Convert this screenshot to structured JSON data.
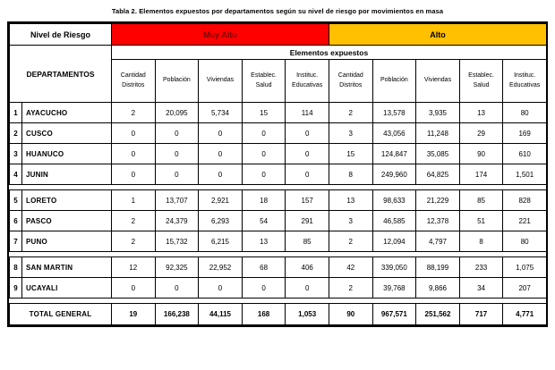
{
  "title": "Tabla 2. Elementos expuestos por departamentos según su nivel de riesgo por movimientos en masa",
  "colors": {
    "muy_alto_bg": "#ff0000",
    "muy_alto_text": "#7a0000",
    "alto_bg": "#ffc000",
    "alto_text": "#000000",
    "border": "#000000"
  },
  "table": {
    "risk_header": "Nivel de Riesgo",
    "risk_levels": [
      {
        "label": "Muy Alto"
      },
      {
        "label": "Alto"
      }
    ],
    "departamentos_header": "DEPARTAMENTOS",
    "elementos_header": "Elementos expuestos",
    "subheaders": [
      "Cantidad\nDistritos",
      "Población",
      "Viviendas",
      "Establec.\nSalud",
      "Instituc.\nEducativas"
    ],
    "rows": [
      {
        "num": "1",
        "name": "AYACUCHO",
        "muy_alto": [
          "2",
          "20,095",
          "5,734",
          "15",
          "114"
        ],
        "alto": [
          "2",
          "13,578",
          "3,935",
          "13",
          "80"
        ],
        "gap_after": false
      },
      {
        "num": "2",
        "name": "CUSCO",
        "muy_alto": [
          "0",
          "0",
          "0",
          "0",
          "0"
        ],
        "alto": [
          "3",
          "43,056",
          "11,248",
          "29",
          "169"
        ],
        "gap_after": false
      },
      {
        "num": "3",
        "name": "HUANUCO",
        "muy_alto": [
          "0",
          "0",
          "0",
          "0",
          "0"
        ],
        "alto": [
          "15",
          "124,847",
          "35,085",
          "90",
          "610"
        ],
        "gap_after": false
      },
      {
        "num": "4",
        "name": "JUNIN",
        "muy_alto": [
          "0",
          "0",
          "0",
          "0",
          "0"
        ],
        "alto": [
          "8",
          "249,960",
          "64,825",
          "174",
          "1,501"
        ],
        "gap_after": true
      },
      {
        "num": "5",
        "name": "LORETO",
        "muy_alto": [
          "1",
          "13,707",
          "2,921",
          "18",
          "157"
        ],
        "alto": [
          "13",
          "98,633",
          "21,229",
          "85",
          "828"
        ],
        "gap_after": false
      },
      {
        "num": "6",
        "name": "PASCO",
        "muy_alto": [
          "2",
          "24,379",
          "6,293",
          "54",
          "291"
        ],
        "alto": [
          "3",
          "46,585",
          "12,378",
          "51",
          "221"
        ],
        "gap_after": false
      },
      {
        "num": "7",
        "name": "PUNO",
        "muy_alto": [
          "2",
          "15,732",
          "6,215",
          "13",
          "85"
        ],
        "alto": [
          "2",
          "12,094",
          "4,797",
          "8",
          "80"
        ],
        "gap_after": true
      },
      {
        "num": "8",
        "name": "SAN MARTIN",
        "muy_alto": [
          "12",
          "92,325",
          "22,952",
          "68",
          "406"
        ],
        "alto": [
          "42",
          "339,050",
          "88,199",
          "233",
          "1,075"
        ],
        "gap_after": false
      },
      {
        "num": "9",
        "name": "UCAYALI",
        "muy_alto": [
          "0",
          "0",
          "0",
          "0",
          "0"
        ],
        "alto": [
          "2",
          "39,768",
          "9,866",
          "34",
          "207"
        ],
        "gap_after": true
      }
    ],
    "total": {
      "label": "TOTAL GENERAL",
      "muy_alto": [
        "19",
        "166,238",
        "44,115",
        "168",
        "1,053"
      ],
      "alto": [
        "90",
        "967,571",
        "251,562",
        "717",
        "4,771"
      ]
    }
  }
}
